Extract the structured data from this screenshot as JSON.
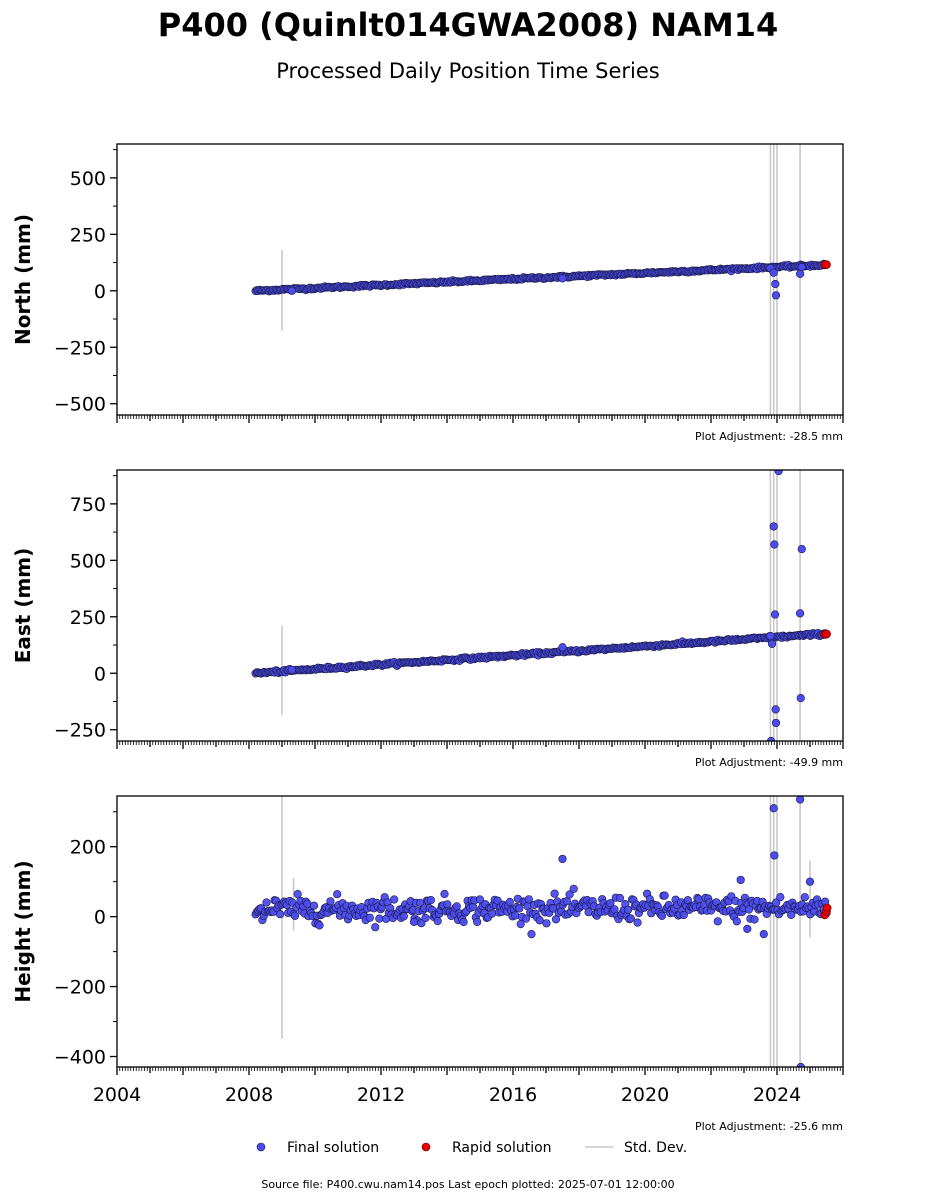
{
  "title": "P400 (Quinlt014GWA2008) NAM14",
  "subtitle": "Processed Daily Position Time Series",
  "colors": {
    "final": "#4b4bf0",
    "final_edge": "#1a1a40",
    "rapid": "#e80000",
    "std": "#c8c8c8",
    "axis": "#000000"
  },
  "chart_data": [
    {
      "type": "scatter",
      "name": "north",
      "ylabel": "North (mm)",
      "xlim": [
        2004.0,
        2026.0
      ],
      "ylim": [
        -550,
        650
      ],
      "yticks": [
        -500,
        -250,
        0,
        250,
        500
      ],
      "ytick_labels": [
        "−500",
        "−250",
        "0",
        "250",
        "500"
      ],
      "adjustment": "Plot Adjustment: -28.5 mm",
      "trend": {
        "x0": 2008.2,
        "y0": 0,
        "x1": 2025.5,
        "y1": 115,
        "noise": 2.5
      },
      "steps": [],
      "outliers": [
        {
          "x": 2009.3,
          "y": 0
        },
        {
          "x": 2017.5,
          "y": 55
        },
        {
          "x": 2023.8,
          "y": 100
        },
        {
          "x": 2023.9,
          "y": 80
        },
        {
          "x": 2023.95,
          "y": 30
        },
        {
          "x": 2023.97,
          "y": -20
        },
        {
          "x": 2024.7,
          "y": 75
        },
        {
          "x": 2024.75,
          "y": 105
        }
      ],
      "rapid": [
        {
          "x": 2025.45,
          "y": 115
        },
        {
          "x": 2025.5,
          "y": 116
        }
      ],
      "std_bars": [
        {
          "x": 2009.0,
          "lo": -175,
          "hi": 180
        },
        {
          "x": 2023.8,
          "lo": -550,
          "hi": 650
        },
        {
          "x": 2023.9,
          "lo": -550,
          "hi": 650
        },
        {
          "x": 2024.0,
          "lo": -550,
          "hi": 650
        },
        {
          "x": 2024.7,
          "lo": -550,
          "hi": 650
        }
      ]
    },
    {
      "type": "scatter",
      "name": "east",
      "ylabel": "East (mm)",
      "xlim": [
        2004.0,
        2026.0
      ],
      "ylim": [
        -300,
        900
      ],
      "yticks": [
        -250,
        0,
        250,
        500,
        750
      ],
      "ytick_labels": [
        "−250",
        "0",
        "250",
        "500",
        "750"
      ],
      "adjustment": "Plot Adjustment: -49.9 mm",
      "trend": {
        "x0": 2008.2,
        "y0": 0,
        "x1": 2025.5,
        "y1": 175,
        "noise": 3
      },
      "steps": [],
      "outliers": [
        {
          "x": 2009.3,
          "y": 15
        },
        {
          "x": 2017.5,
          "y": 115
        },
        {
          "x": 2023.8,
          "y": 165
        },
        {
          "x": 2023.85,
          "y": 130
        },
        {
          "x": 2023.9,
          "y": 650
        },
        {
          "x": 2023.92,
          "y": 570
        },
        {
          "x": 2023.94,
          "y": 260
        },
        {
          "x": 2023.96,
          "y": -160
        },
        {
          "x": 2023.97,
          "y": -220
        },
        {
          "x": 2024.05,
          "y": 895
        },
        {
          "x": 2023.82,
          "y": -300
        },
        {
          "x": 2024.7,
          "y": 265
        },
        {
          "x": 2024.72,
          "y": -110
        },
        {
          "x": 2024.75,
          "y": 550
        }
      ],
      "rapid": [
        {
          "x": 2025.45,
          "y": 172
        },
        {
          "x": 2025.5,
          "y": 174
        }
      ],
      "std_bars": [
        {
          "x": 2009.0,
          "lo": -185,
          "hi": 210
        },
        {
          "x": 2023.8,
          "lo": -300,
          "hi": 900
        },
        {
          "x": 2023.9,
          "lo": -300,
          "hi": 900
        },
        {
          "x": 2024.0,
          "lo": -300,
          "hi": 900
        },
        {
          "x": 2024.7,
          "lo": -300,
          "hi": 900
        }
      ]
    },
    {
      "type": "scatter",
      "name": "height",
      "ylabel": "Height (mm)",
      "xlim": [
        2004.0,
        2026.0
      ],
      "ylim": [
        -430,
        345
      ],
      "yticks": [
        -400,
        -200,
        0,
        200
      ],
      "ytick_labels": [
        "−400",
        "−200",
        "0",
        "200"
      ],
      "xticks": [
        2004,
        2008,
        2012,
        2016,
        2020,
        2024
      ],
      "xtick_labels": [
        "2004",
        "2008",
        "2012",
        "2016",
        "2020",
        "2024"
      ],
      "adjustment": "Plot Adjustment: -25.6 mm",
      "trend": {
        "x0": 2008.2,
        "y0": 20,
        "x1": 2025.5,
        "y1": 25,
        "noise": 18
      },
      "steps": [],
      "outliers": [
        {
          "x": 2017.5,
          "y": 165
        },
        {
          "x": 2022.9,
          "y": 105
        },
        {
          "x": 2023.1,
          "y": -35
        },
        {
          "x": 2023.6,
          "y": -50
        },
        {
          "x": 2023.9,
          "y": 310
        },
        {
          "x": 2023.92,
          "y": 175
        },
        {
          "x": 2024.7,
          "y": 335
        },
        {
          "x": 2024.72,
          "y": -430
        },
        {
          "x": 2025.0,
          "y": 100
        },
        {
          "x": 2013.0,
          "y": -15
        }
      ],
      "rapid": [
        {
          "x": 2025.45,
          "y": 5
        },
        {
          "x": 2025.5,
          "y": 15
        },
        {
          "x": 2025.52,
          "y": 25
        }
      ],
      "std_bars": [
        {
          "x": 2009.0,
          "lo": -350,
          "hi": 345
        },
        {
          "x": 2009.35,
          "lo": -40,
          "hi": 110
        },
        {
          "x": 2023.8,
          "lo": -430,
          "hi": 345
        },
        {
          "x": 2023.9,
          "lo": -430,
          "hi": 345
        },
        {
          "x": 2024.0,
          "lo": -430,
          "hi": 345
        },
        {
          "x": 2024.7,
          "lo": -430,
          "hi": 345
        },
        {
          "x": 2025.0,
          "lo": -60,
          "hi": 160
        }
      ]
    }
  ],
  "legend": {
    "final": "Final solution",
    "rapid": "Rapid solution",
    "std": "Std. Dev."
  },
  "footer": "Source file: P400.cwu.nam14.pos  Last epoch plotted: 2025-07-01 12:00:00"
}
